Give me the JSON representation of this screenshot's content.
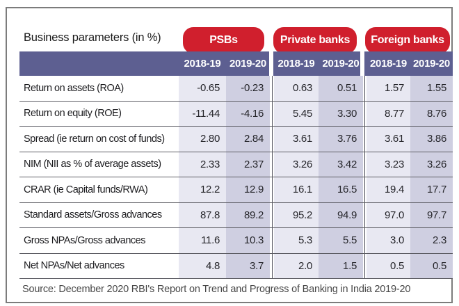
{
  "colors": {
    "red": "#d01f2d",
    "band": "#5d5f91",
    "col_light": "#e8e8f2",
    "col_dark": "#cfcfe1"
  },
  "chart_data": {
    "type": "table",
    "title": "Business parameters  (in %)",
    "column_groups": [
      {
        "label": "PSBs",
        "columns": [
          "2018-19",
          "2019-20"
        ]
      },
      {
        "label": "Private banks",
        "columns": [
          "2018-19",
          "2019-20"
        ]
      },
      {
        "label": "Foreign banks",
        "columns": [
          "2018-19",
          "2019-20"
        ]
      }
    ],
    "rows": [
      {
        "label": "Return on assets (ROA)",
        "values": [
          "-0.65",
          "-0.23",
          "0.63",
          "0.51",
          "1.57",
          "1.55"
        ]
      },
      {
        "label": "Return on equity (ROE)",
        "values": [
          "-11.44",
          "-4.16",
          "5.45",
          "3.30",
          "8.77",
          "8.76"
        ]
      },
      {
        "label": "Spread (ie return on cost of funds)",
        "values": [
          "2.80",
          "2.84",
          "3.61",
          "3.76",
          "3.61",
          "3.86"
        ]
      },
      {
        "label": "NIM (NII as % of average assets)",
        "values": [
          "2.33",
          "2.37",
          "3.26",
          "3.42",
          "3.23",
          "3.26"
        ]
      },
      {
        "label": "CRAR (ie Capital funds/RWA)",
        "values": [
          "12.2",
          "12.9",
          "16.1",
          "16.5",
          "19.4",
          "17.7"
        ]
      },
      {
        "label": "Standard assets/Gross advances",
        "values": [
          "87.8",
          "89.2",
          "95.2",
          "94.9",
          "97.0",
          "97.7"
        ]
      },
      {
        "label": "Gross NPAs/Gross advances",
        "values": [
          "11.6",
          "10.3",
          "5.3",
          "5.5",
          "3.0",
          "2.3"
        ]
      },
      {
        "label": "Net NPAs/Net advances",
        "values": [
          "4.8",
          "3.7",
          "2.0",
          "1.5",
          "0.5",
          "0.5"
        ]
      }
    ],
    "source": "Source: December 2020 RBI's Report on Trend and Progress of Banking in India 2019-20"
  }
}
